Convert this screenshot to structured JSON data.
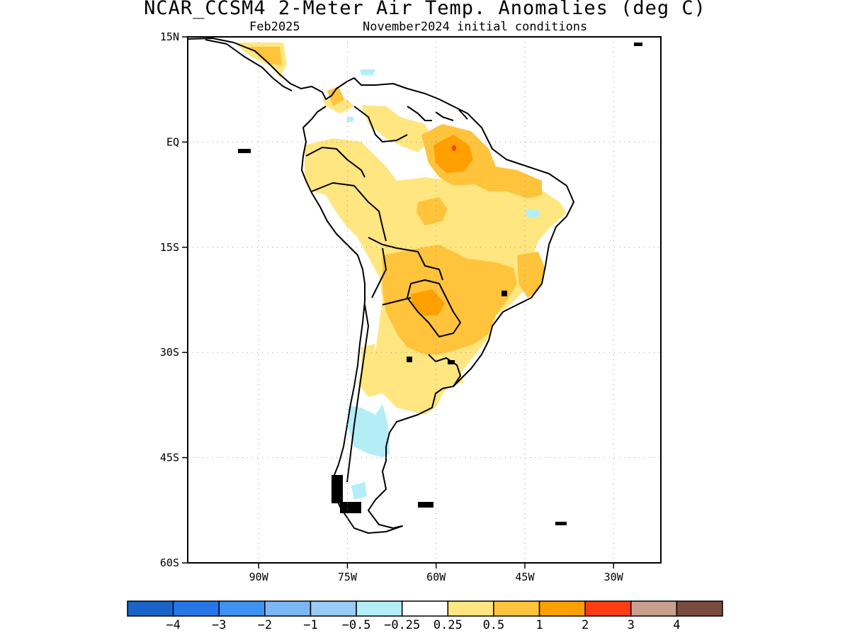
{
  "title": "NCAR_CCSM4 2-Meter Air Temp. Anomalies (deg C)",
  "subtitle_left": "Feb2025",
  "subtitle_right": "November2024 initial conditions",
  "map": {
    "lon_range": [
      -102,
      -22
    ],
    "lat_range": [
      -60,
      15
    ],
    "x_ticks": [
      {
        "lon": -90,
        "label": "90W"
      },
      {
        "lon": -75,
        "label": "75W"
      },
      {
        "lon": -60,
        "label": "60W"
      },
      {
        "lon": -45,
        "label": "45W"
      },
      {
        "lon": -30,
        "label": "30W"
      }
    ],
    "y_ticks": [
      {
        "lat": 15,
        "label": "15N"
      },
      {
        "lat": 0,
        "label": "EQ"
      },
      {
        "lat": -15,
        "label": "15S"
      },
      {
        "lat": -30,
        "label": "30S"
      },
      {
        "lat": -45,
        "label": "45S"
      },
      {
        "lat": -60,
        "label": "60S"
      }
    ],
    "grid": "dotted"
  },
  "colorbar": {
    "colors": [
      "#1a63c8",
      "#2676e8",
      "#3d93ef",
      "#7bb8f3",
      "#98cbf6",
      "#b3eef6",
      "#ffffff",
      "#ffe680",
      "#ffc33c",
      "#ff9f00",
      "#ff3d12",
      "#c99f90",
      "#7b4b3f"
    ],
    "labels": [
      "-4",
      "-3",
      "-2",
      "-1",
      "-0.5",
      "-0.25",
      "0.25",
      "0.5",
      "1",
      "2",
      "3",
      "4"
    ]
  },
  "anomaly_regions": [
    {
      "level": "0.5",
      "color": "#ffe680"
    },
    {
      "level": "1",
      "color": "#ffc33c"
    },
    {
      "level": "2",
      "color": "#ff9f00"
    },
    {
      "level": "3",
      "color": "#ff3d12"
    },
    {
      "level": "-0.25",
      "color": "#b3eef6"
    }
  ]
}
